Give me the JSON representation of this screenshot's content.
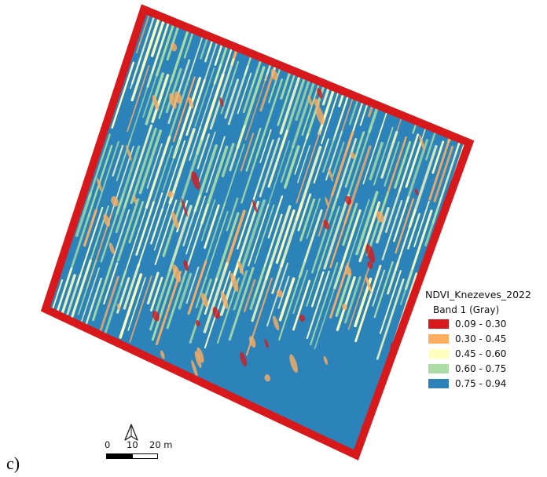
{
  "map": {
    "layer_name": "NDVI_Knezeves_2022",
    "band_label": "Band 1 (Gray)",
    "classes": [
      {
        "label": "0.09 - 0.30",
        "color": "#d7191c"
      },
      {
        "label": "0.30 - 0.45",
        "color": "#fdae61"
      },
      {
        "label": "0.45 - 0.60",
        "color": "#ffffbf"
      },
      {
        "label": "0.60 - 0.75",
        "color": "#abdda4"
      },
      {
        "label": "0.75 - 0.94",
        "color": "#2b83ba"
      }
    ],
    "field_palette": {
      "base": "#2b83ba",
      "row_light": "#ffffbf",
      "row_green": "#abdda4",
      "patch_orange": "#fdae61",
      "edge_red": "#d7191c"
    }
  },
  "scale": {
    "labels": [
      "0",
      "10",
      "20 m"
    ]
  },
  "north_arrow": {
    "icon": "north-arrow-icon"
  },
  "panel": {
    "label": "c)"
  }
}
